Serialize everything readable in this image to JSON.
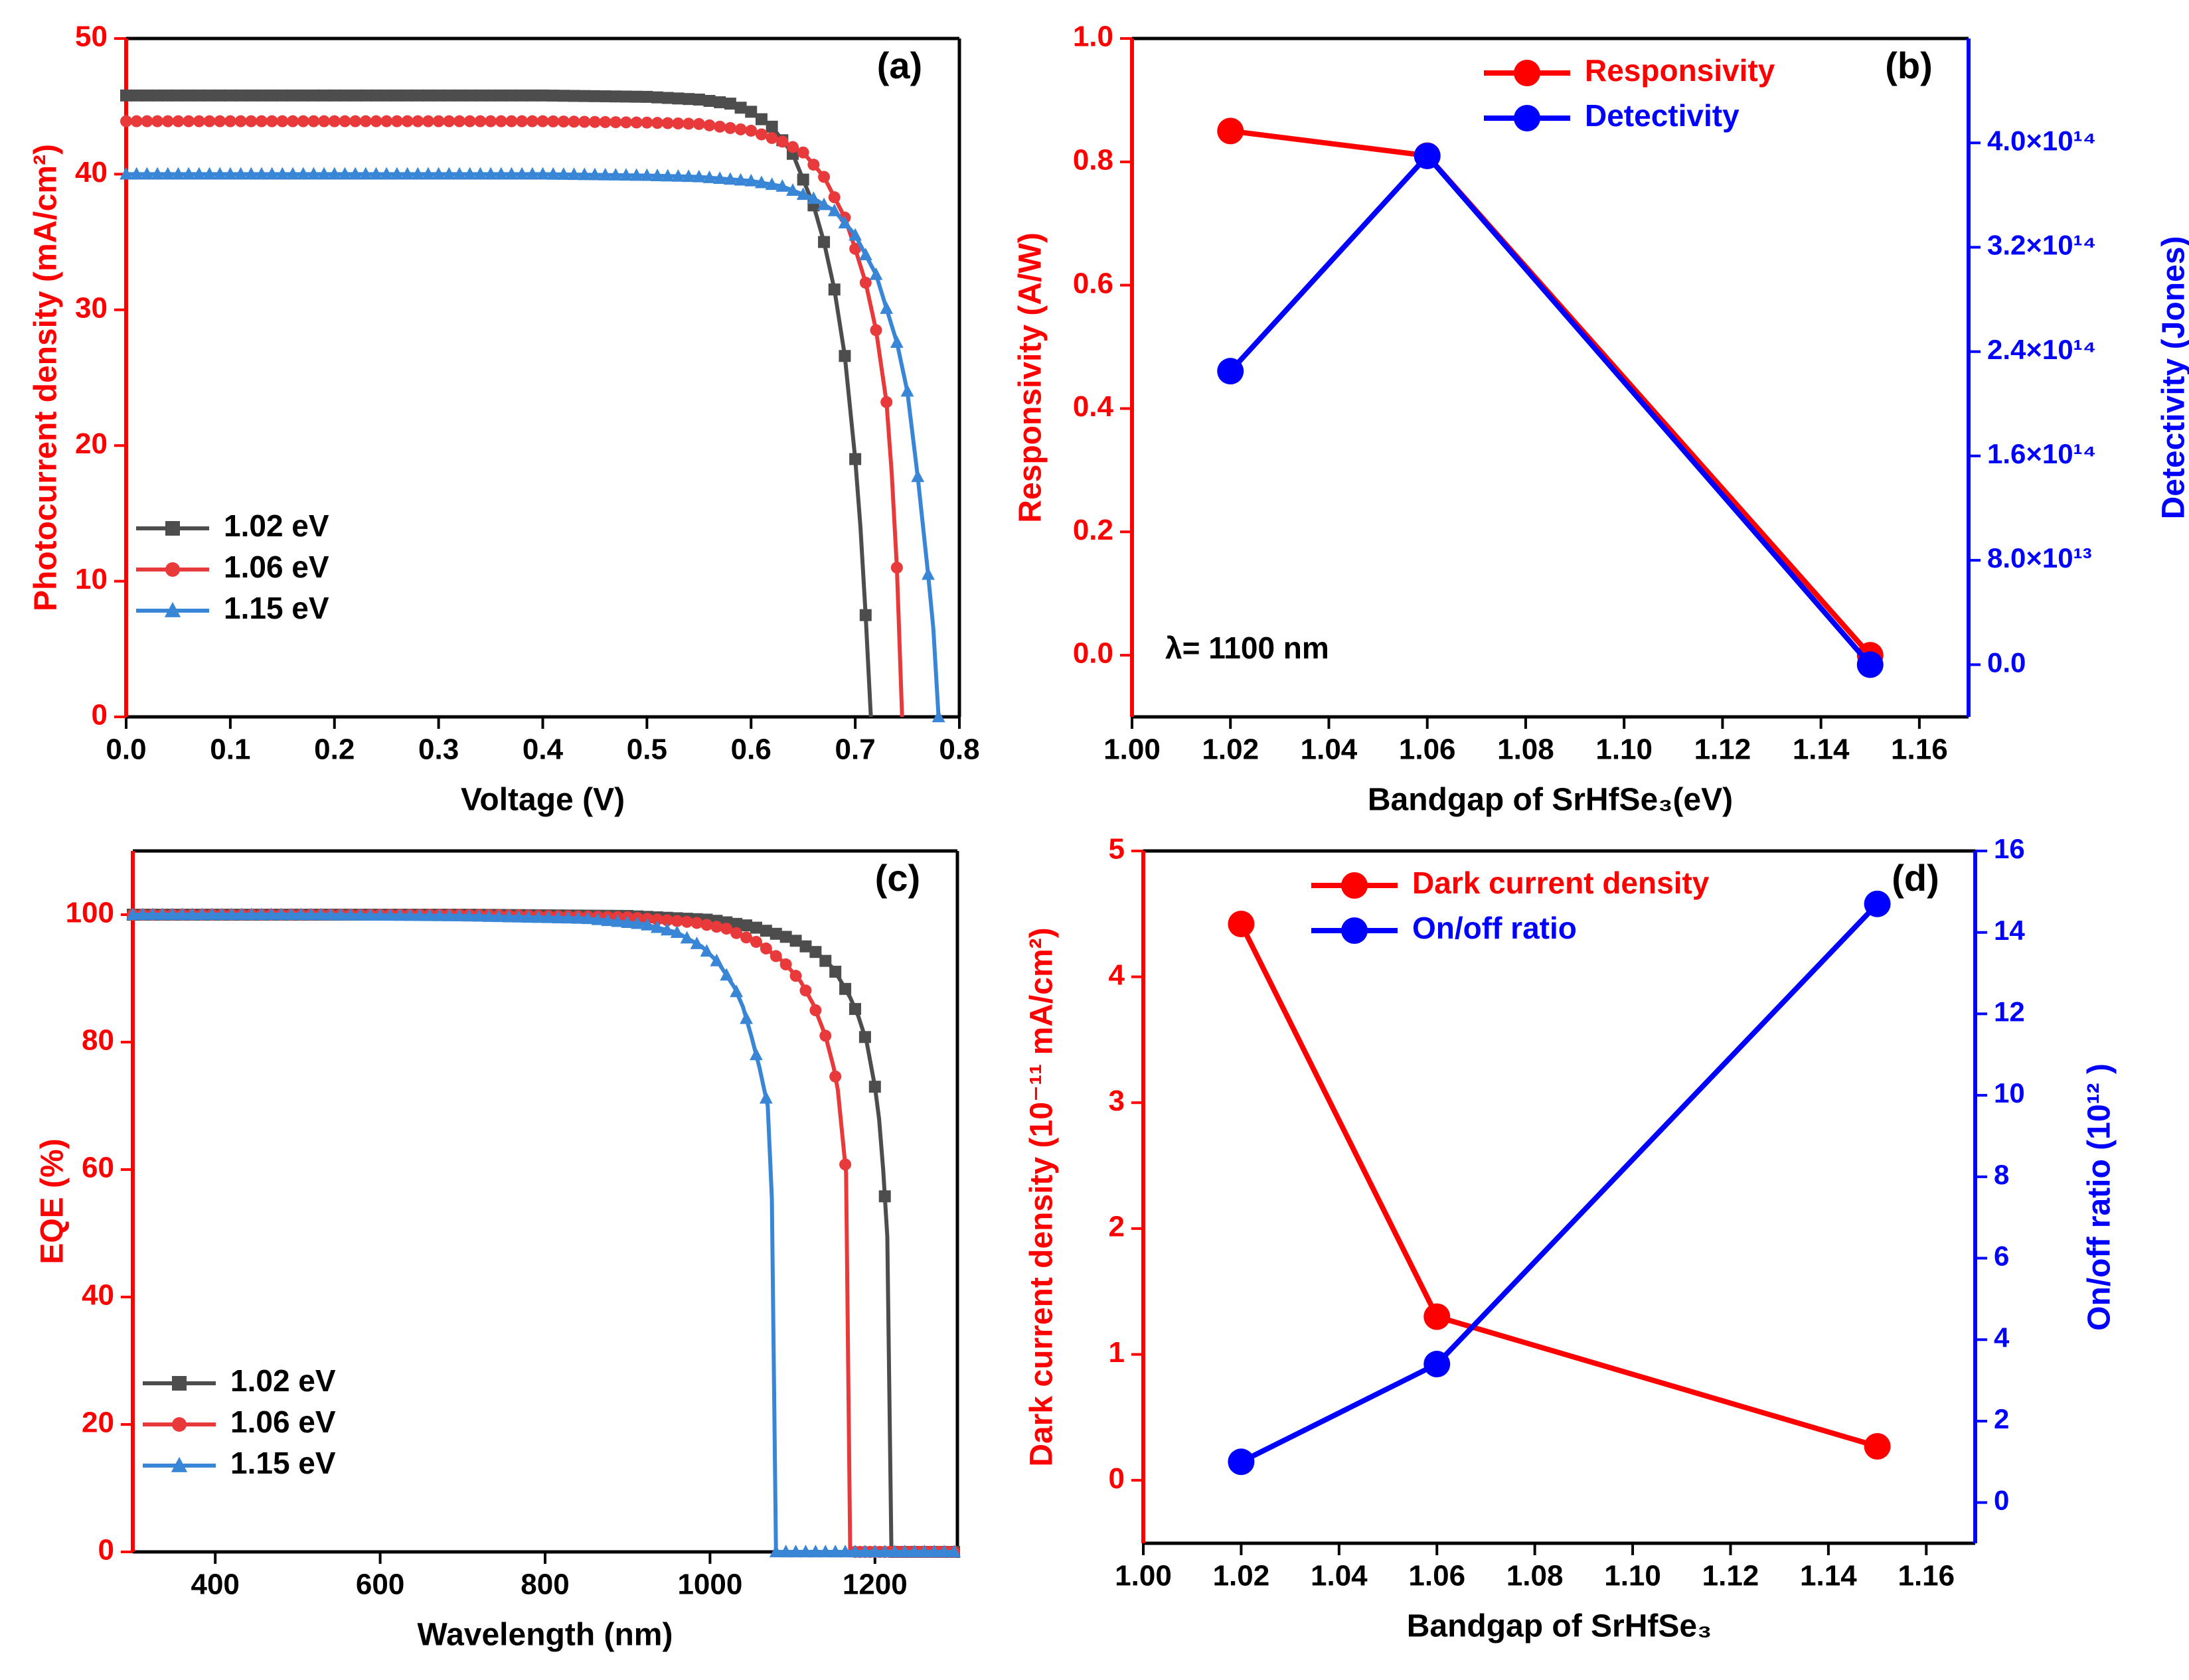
{
  "chart_data": [
    {
      "id": "a",
      "type": "line",
      "panel_label": "(a)",
      "xlabel": "Voltage (V)",
      "ylabel": "Photocurrent density (mA/cm²)",
      "xlim": [
        0,
        0.8
      ],
      "ylim": [
        0,
        50
      ],
      "xticks": [
        "0.0",
        "0.1",
        "0.2",
        "0.3",
        "0.4",
        "0.5",
        "0.6",
        "0.7",
        "0.8"
      ],
      "yticks": [
        "0",
        "10",
        "20",
        "30",
        "40",
        "50"
      ],
      "legend_position": "bottom-left",
      "colors": {
        "left_axis": "#ff0000",
        "right_axis": "",
        "frame": "#000000"
      },
      "series": [
        {
          "name": "1.02 eV",
          "color": "#4d4d4d",
          "marker": "square",
          "x": [
            0.0,
            0.1,
            0.2,
            0.3,
            0.4,
            0.5,
            0.55,
            0.58,
            0.6,
            0.62,
            0.64,
            0.66,
            0.67,
            0.68,
            0.69,
            0.7,
            0.705,
            0.71,
            0.715
          ],
          "y": [
            45.8,
            45.8,
            45.8,
            45.8,
            45.8,
            45.7,
            45.5,
            45.2,
            44.6,
            43.5,
            41.5,
            37.7,
            35.0,
            31.5,
            26.6,
            19.0,
            14.0,
            7.5,
            0
          ]
        },
        {
          "name": "1.06 eV",
          "color": "#e8393b",
          "marker": "circle",
          "x": [
            0.0,
            0.1,
            0.2,
            0.3,
            0.4,
            0.5,
            0.55,
            0.6,
            0.63,
            0.65,
            0.67,
            0.69,
            0.7,
            0.71,
            0.72,
            0.73,
            0.735,
            0.74,
            0.745
          ],
          "y": [
            43.9,
            43.9,
            43.9,
            43.9,
            43.9,
            43.8,
            43.7,
            43.2,
            42.4,
            41.6,
            39.8,
            36.8,
            34.5,
            32.0,
            28.5,
            23.2,
            18.0,
            11.0,
            0
          ]
        },
        {
          "name": "1.15 eV",
          "color": "#3a86d6",
          "marker": "triangle",
          "x": [
            0.0,
            0.1,
            0.2,
            0.3,
            0.4,
            0.5,
            0.55,
            0.6,
            0.63,
            0.66,
            0.68,
            0.7,
            0.72,
            0.74,
            0.75,
            0.76,
            0.77,
            0.775,
            0.78
          ],
          "y": [
            40.0,
            40.0,
            40.0,
            40.0,
            40.0,
            39.9,
            39.8,
            39.5,
            39.1,
            38.2,
            37.3,
            35.5,
            32.6,
            27.6,
            24.0,
            17.7,
            10.5,
            6.5,
            0
          ]
        }
      ]
    },
    {
      "id": "b",
      "type": "line",
      "panel_label": "(b)",
      "xlabel": "Bandgap of SrHfSe₃(eV)",
      "ylabel": "Responsivity (A/W)",
      "ylabel_right": "Detectivity (Jones)",
      "xlim": [
        1.0,
        1.17
      ],
      "ylim": [
        -0.1,
        1.0
      ],
      "ylim_right": [
        -40000000000000,
        480000000000000
      ],
      "xticks": [
        "1.00",
        "1.02",
        "1.04",
        "1.06",
        "1.08",
        "1.10",
        "1.12",
        "1.14",
        "1.16"
      ],
      "yticks": [
        "0.0",
        "0.2",
        "0.4",
        "0.6",
        "0.8",
        "1.0"
      ],
      "yticks_right": [
        "0.0",
        "8.0×10¹³",
        "1.6×10¹⁴",
        "2.4×10¹⁴",
        "3.2×10¹⁴",
        "4.0×10¹⁴"
      ],
      "annotation": "λ= 1100 nm",
      "legend_position": "top-center",
      "colors": {
        "left_axis": "#ff0000",
        "right_axis": "#0000ff",
        "frame": "#000000"
      },
      "series": [
        {
          "name": "Responsivity",
          "color": "#ff0000",
          "marker": "circle",
          "axis": "left",
          "x": [
            1.02,
            1.06,
            1.15
          ],
          "y": [
            0.85,
            0.81,
            0.0
          ]
        },
        {
          "name": "Detectivity",
          "color": "#0000ff",
          "marker": "circle",
          "axis": "right",
          "x": [
            1.02,
            1.06,
            1.15
          ],
          "y": [
            225000000000000,
            390000000000000,
            0
          ]
        }
      ]
    },
    {
      "id": "c",
      "type": "line",
      "panel_label": "(c)",
      "xlabel": "Wavelength (nm)",
      "ylabel": "EQE (%)",
      "xlim": [
        300,
        1300
      ],
      "ylim": [
        0,
        110
      ],
      "xticks": [
        "400",
        "600",
        "800",
        "1000",
        "1200"
      ],
      "yticks": [
        "0",
        "20",
        "40",
        "60",
        "80",
        "100"
      ],
      "legend_position": "bottom-left",
      "colors": {
        "left_axis": "#ff0000",
        "right_axis": "",
        "frame": "#000000"
      },
      "series": [
        {
          "name": "1.02 eV",
          "color": "#4d4d4d",
          "marker": "square",
          "x": [
            300,
            500,
            700,
            900,
            1000,
            1050,
            1100,
            1130,
            1150,
            1170,
            1180,
            1190,
            1200,
            1205,
            1210,
            1215,
            1220,
            1300
          ],
          "y": [
            100,
            100,
            100,
            99.8,
            99.2,
            98.2,
            96.2,
            94.0,
            91.5,
            87.0,
            84.0,
            80.0,
            73.0,
            68.0,
            60.0,
            49.5,
            0,
            0
          ]
        },
        {
          "name": "1.06 eV",
          "color": "#e8393b",
          "marker": "circle",
          "x": [
            300,
            500,
            700,
            900,
            980,
            1020,
            1060,
            1090,
            1110,
            1125,
            1140,
            1150,
            1155,
            1160,
            1165,
            1170,
            1300
          ],
          "y": [
            100,
            100,
            100,
            99.6,
            98.8,
            97.8,
            95.5,
            92.5,
            89.5,
            86.0,
            81.0,
            76.0,
            72.5,
            66.0,
            59.5,
            0,
            0
          ]
        },
        {
          "name": "1.15 eV",
          "color": "#3a86d6",
          "marker": "triangle",
          "x": [
            300,
            500,
            700,
            850,
            920,
            960,
            990,
            1010,
            1030,
            1040,
            1050,
            1060,
            1070,
            1075,
            1080,
            1300
          ],
          "y": [
            100,
            100,
            99.8,
            99.4,
            98.5,
            97.2,
            95.0,
            92.5,
            88.5,
            85.5,
            81.0,
            76.0,
            70.0,
            55.5,
            0,
            0
          ]
        }
      ]
    },
    {
      "id": "d",
      "type": "line",
      "panel_label": "(d)",
      "xlabel": "Bandgap of SrHfSe₃",
      "ylabel": "Dark current density (10⁻¹¹ mA/cm²)",
      "ylabel_right": "On/off ratio (10¹² )",
      "xlim": [
        1.0,
        1.17
      ],
      "ylim": [
        -0.5,
        5.0
      ],
      "ylim_right": [
        -1.0,
        16.0
      ],
      "xticks": [
        "1.00",
        "1.02",
        "1.04",
        "1.06",
        "1.08",
        "1.10",
        "1.12",
        "1.14",
        "1.16"
      ],
      "yticks": [
        "0",
        "1",
        "2",
        "3",
        "4",
        "5"
      ],
      "yticks_right": [
        "0",
        "2",
        "4",
        "6",
        "8",
        "10",
        "12",
        "14",
        "16"
      ],
      "legend_position": "top-center",
      "colors": {
        "left_axis": "#ff0000",
        "right_axis": "#0000ff",
        "frame": "#000000"
      },
      "series": [
        {
          "name": "Dark current density",
          "color": "#ff0000",
          "marker": "circle",
          "axis": "left",
          "x": [
            1.02,
            1.06,
            1.15
          ],
          "y": [
            4.42,
            1.3,
            0.27
          ]
        },
        {
          "name": "On/off ratio",
          "color": "#0000ff",
          "marker": "circle",
          "axis": "right",
          "x": [
            1.02,
            1.06,
            1.15
          ],
          "y": [
            1.0,
            3.4,
            14.7
          ]
        }
      ]
    }
  ]
}
